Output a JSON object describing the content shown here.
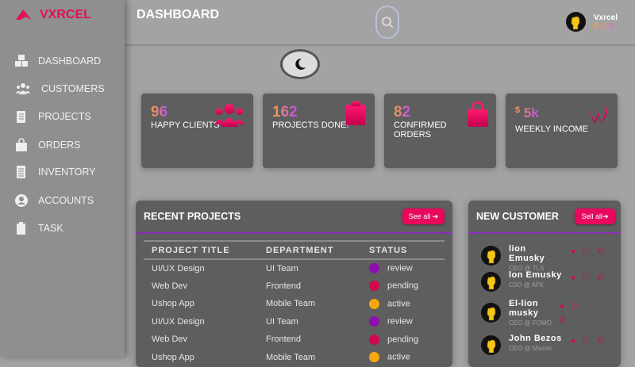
{
  "brand": {
    "name": "VXRCEL",
    "color": "#e0105a"
  },
  "sidebar": {
    "items": [
      {
        "label": "DASHBOARD",
        "icon": "cubes-icon"
      },
      {
        "label": "CUSTOMERS",
        "icon": "users-icon"
      },
      {
        "label": "PROJECTS",
        "icon": "clipboard-list-icon"
      },
      {
        "label": "ORDERS",
        "icon": "shopping-bag-icon"
      },
      {
        "label": "INVENTORY",
        "icon": "receipt-icon"
      },
      {
        "label": "ACCOUNTS",
        "icon": "user-circle-icon"
      },
      {
        "label": "TASK",
        "icon": "clipboard-icon"
      }
    ]
  },
  "header": {
    "title": "DASHBOARD",
    "user": {
      "name": "Vxrcel",
      "role": "CEO"
    }
  },
  "cards": [
    {
      "value": "96",
      "label": "HAPPY CLIENTS",
      "icon": "users-icon"
    },
    {
      "value": "162",
      "label": "PROJECTS DONE!",
      "icon": "clipboard-icon"
    },
    {
      "value": "82",
      "label": "CONFIRMED ORDERS",
      "icon": "shopping-bag-icon"
    },
    {
      "currency": "$",
      "value": "5k",
      "label": "WEEKLY INCOME",
      "icon": "wave-icon"
    }
  ],
  "recent_projects": {
    "title": "RECENT PROJECTS",
    "button": "See all",
    "columns": [
      "PROJECT TITLE",
      "DEPARTMENT",
      "STATUS"
    ],
    "rows": [
      {
        "title": "UI/UX Design",
        "dept": "UI Team",
        "status": "review"
      },
      {
        "title": "Web Dev",
        "dept": "Frontend",
        "status": "pending"
      },
      {
        "title": "Ushop App",
        "dept": "Mobile Team",
        "status": "active"
      },
      {
        "title": "UI/UX Design",
        "dept": "UI Team",
        "status": "review"
      },
      {
        "title": "Web Dev",
        "dept": "Frontend",
        "status": "pending"
      },
      {
        "title": "Ushop App",
        "dept": "Mobile Team",
        "status": "active"
      }
    ]
  },
  "status_colors": {
    "review": "#8e0fb0",
    "pending": "#d0084f",
    "active": "#f7a80f"
  },
  "new_customer": {
    "title": "NEW CUSTOMER",
    "button": "Sell all",
    "customers": [
      {
        "name": "lion Emusky",
        "role": "CEO @ TLS"
      },
      {
        "name": "lon Emusky",
        "role": "C0O @ AFK"
      },
      {
        "name": "El-lion musky",
        "role": "CEO @ FOMO"
      },
      {
        "name": "John Bezos",
        "role": "CEO @ Mazon"
      }
    ]
  }
}
